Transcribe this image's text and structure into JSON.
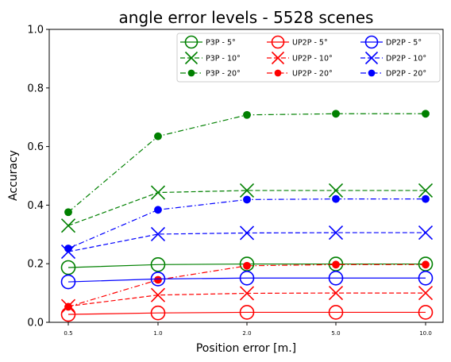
{
  "chart_data": {
    "type": "line",
    "title": "angle error levels - 5528 scenes",
    "xlabel": "Position error [m.]",
    "ylabel": "Accuracy",
    "categories": [
      "0.5",
      "1.0",
      "2.0",
      "5.0",
      "10.0"
    ],
    "ylim": [
      0,
      1
    ],
    "yticks": [
      "0.0",
      "0.2",
      "0.4",
      "0.6",
      "0.8",
      "1.0"
    ],
    "grid": false,
    "legend_position": "top-right",
    "series": [
      {
        "name": "P3P - 5°",
        "color": "#008000",
        "marker": "open-circle",
        "linestyle": "solid",
        "values": [
          0.187,
          0.197,
          0.199,
          0.199,
          0.199
        ]
      },
      {
        "name": "P3P - 10°",
        "color": "#008000",
        "marker": "x",
        "linestyle": "dashed",
        "values": [
          0.33,
          0.443,
          0.45,
          0.45,
          0.45
        ]
      },
      {
        "name": "P3P - 20°",
        "color": "#008000",
        "marker": "dot",
        "linestyle": "dashdot",
        "values": [
          0.376,
          0.635,
          0.708,
          0.712,
          0.712
        ]
      },
      {
        "name": "UP2P - 5°",
        "color": "#ff0000",
        "marker": "open-circle",
        "linestyle": "solid",
        "values": [
          0.027,
          0.032,
          0.034,
          0.034,
          0.034
        ]
      },
      {
        "name": "UP2P - 10°",
        "color": "#ff0000",
        "marker": "x",
        "linestyle": "dashed",
        "values": [
          0.055,
          0.093,
          0.099,
          0.1,
          0.1
        ]
      },
      {
        "name": "UP2P - 20°",
        "color": "#ff0000",
        "marker": "dot",
        "linestyle": "dashdot",
        "values": [
          0.053,
          0.145,
          0.193,
          0.197,
          0.197
        ]
      },
      {
        "name": "DP2P - 5°",
        "color": "#0000ff",
        "marker": "open-circle",
        "linestyle": "solid",
        "values": [
          0.138,
          0.148,
          0.151,
          0.151,
          0.151
        ]
      },
      {
        "name": "DP2P - 10°",
        "color": "#0000ff",
        "marker": "x",
        "linestyle": "dashed",
        "values": [
          0.241,
          0.301,
          0.305,
          0.306,
          0.306
        ]
      },
      {
        "name": "DP2P - 20°",
        "color": "#0000ff",
        "marker": "dot",
        "linestyle": "dashdot",
        "values": [
          0.252,
          0.384,
          0.419,
          0.421,
          0.421
        ]
      }
    ]
  }
}
